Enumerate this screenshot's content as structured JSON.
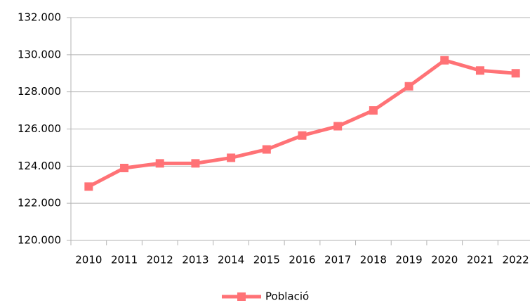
{
  "chart_data": {
    "type": "line",
    "categories": [
      "2010",
      "2011",
      "2012",
      "2013",
      "2014",
      "2015",
      "2016",
      "2017",
      "2018",
      "2019",
      "2020",
      "2021",
      "2022"
    ],
    "series": [
      {
        "name": "Població",
        "color": "#ff7276",
        "values": [
          122900,
          123900,
          124150,
          124150,
          124450,
          124900,
          125650,
          126150,
          127000,
          128300,
          129700,
          129150,
          129000
        ]
      }
    ],
    "ylim": [
      120000,
      132000
    ],
    "yticks": [
      {
        "value": 120000,
        "label": "120.000"
      },
      {
        "value": 122000,
        "label": "122.000"
      },
      {
        "value": 124000,
        "label": "124.000"
      },
      {
        "value": 126000,
        "label": "126.000"
      },
      {
        "value": 128000,
        "label": "128.000"
      },
      {
        "value": 130000,
        "label": "130.000"
      },
      {
        "value": 132000,
        "label": "132.000"
      }
    ],
    "grid": true,
    "legend": "bottom"
  }
}
